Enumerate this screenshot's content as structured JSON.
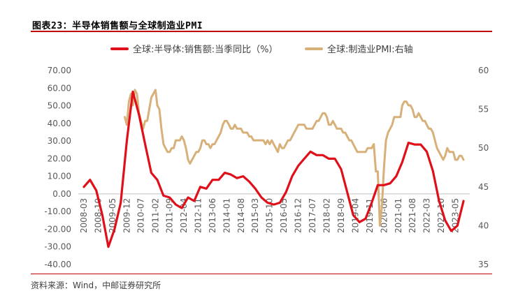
{
  "figure": {
    "title": "图表23：半导体销售额与全球制造业PMI",
    "source": "资料来源：Wind，中邮证券研究所"
  },
  "chart_data": {
    "type": "line",
    "title": "",
    "legend_position": "top",
    "grid": false,
    "x_tick_labels": [
      "2008-03",
      "2008-10",
      "2009-05",
      "2009-12",
      "2010-07",
      "2011-02",
      "2011-09",
      "2012-04",
      "2012-11",
      "2013-06",
      "2014-01",
      "2014-08",
      "2015-03",
      "2015-10",
      "2016-05",
      "2016-12",
      "2017-07",
      "2018-02",
      "2018-09",
      "2019-04",
      "2019-11",
      "2020-06",
      "2021-01",
      "2021-08",
      "2022-03",
      "2022-10",
      "2023-05"
    ],
    "y_left": {
      "ticks": [
        "70.00",
        "60.00",
        "50.00",
        "40.00",
        "30.00",
        "20.00",
        "10.00",
        "0.00",
        "-10.00",
        "-20.00",
        "-30.00",
        "-40.00"
      ],
      "range": [
        -40,
        70
      ]
    },
    "y_right": {
      "ticks": [
        "60",
        "55",
        "50",
        "45",
        "40",
        "35"
      ],
      "range": [
        35,
        60
      ]
    },
    "series": [
      {
        "name": "全球:半导体:销售额:当季同比（%）",
        "axis": "left",
        "color": "#e0101a",
        "points": [
          [
            "2008-03",
            4
          ],
          [
            "2008-06",
            8
          ],
          [
            "2008-09",
            2
          ],
          [
            "2008-12",
            -12
          ],
          [
            "2009-03",
            -30
          ],
          [
            "2009-06",
            -20
          ],
          [
            "2009-09",
            -5
          ],
          [
            "2009-12",
            30
          ],
          [
            "2010-03",
            58
          ],
          [
            "2010-06",
            45
          ],
          [
            "2010-09",
            28
          ],
          [
            "2010-12",
            12
          ],
          [
            "2011-03",
            8
          ],
          [
            "2011-06",
            -1
          ],
          [
            "2011-09",
            -2
          ],
          [
            "2011-12",
            -6
          ],
          [
            "2012-03",
            -8
          ],
          [
            "2012-06",
            -2
          ],
          [
            "2012-09",
            -4
          ],
          [
            "2012-12",
            4
          ],
          [
            "2013-03",
            3
          ],
          [
            "2013-06",
            8
          ],
          [
            "2013-09",
            8
          ],
          [
            "2013-12",
            12
          ],
          [
            "2014-03",
            11
          ],
          [
            "2014-06",
            9
          ],
          [
            "2014-09",
            10
          ],
          [
            "2014-12",
            7
          ],
          [
            "2015-03",
            3
          ],
          [
            "2015-06",
            -2
          ],
          [
            "2015-09",
            -5
          ],
          [
            "2015-12",
            -6
          ],
          [
            "2016-03",
            -5
          ],
          [
            "2016-06",
            1
          ],
          [
            "2016-09",
            10
          ],
          [
            "2016-12",
            16
          ],
          [
            "2017-03",
            20
          ],
          [
            "2017-06",
            24
          ],
          [
            "2017-09",
            22
          ],
          [
            "2017-12",
            22
          ],
          [
            "2018-03",
            20
          ],
          [
            "2018-06",
            20
          ],
          [
            "2018-09",
            14
          ],
          [
            "2018-12",
            1
          ],
          [
            "2019-03",
            -12
          ],
          [
            "2019-06",
            -16
          ],
          [
            "2019-09",
            -14
          ],
          [
            "2019-12",
            -5
          ],
          [
            "2020-03",
            5
          ],
          [
            "2020-06",
            5
          ],
          [
            "2020-09",
            6
          ],
          [
            "2020-12",
            10
          ],
          [
            "2021-03",
            18
          ],
          [
            "2021-06",
            29
          ],
          [
            "2021-09",
            28
          ],
          [
            "2021-12",
            28
          ],
          [
            "2022-03",
            24
          ],
          [
            "2022-06",
            13
          ],
          [
            "2022-09",
            -4
          ],
          [
            "2022-12",
            -15
          ],
          [
            "2023-03",
            -21
          ],
          [
            "2023-06",
            -18
          ],
          [
            "2023-09",
            -4
          ]
        ]
      },
      {
        "name": "全球:制造业PMI:右轴",
        "axis": "right",
        "color": "#d7b07a",
        "points": [
          [
            "2009-11",
            54
          ],
          [
            "2009-12",
            53
          ],
          [
            "2010-01",
            56
          ],
          [
            "2010-02",
            57
          ],
          [
            "2010-03",
            55.5
          ],
          [
            "2010-04",
            57.5
          ],
          [
            "2010-05",
            57
          ],
          [
            "2010-06",
            54.5
          ],
          [
            "2010-07",
            53.5
          ],
          [
            "2010-08",
            52.5
          ],
          [
            "2010-09",
            53.5
          ],
          [
            "2010-10",
            53.5
          ],
          [
            "2010-11",
            55
          ],
          [
            "2010-12",
            56.5
          ],
          [
            "2011-01",
            57
          ],
          [
            "2011-02",
            57.5
          ],
          [
            "2011-03",
            55.5
          ],
          [
            "2011-04",
            55
          ],
          [
            "2011-05",
            52.5
          ],
          [
            "2011-06",
            50.5
          ],
          [
            "2011-07",
            50
          ],
          [
            "2011-08",
            49.5
          ],
          [
            "2011-09",
            49.5
          ],
          [
            "2011-10",
            50
          ],
          [
            "2011-11",
            50
          ],
          [
            "2011-12",
            51
          ],
          [
            "2012-01",
            51
          ],
          [
            "2012-02",
            51
          ],
          [
            "2012-03",
            51.5
          ],
          [
            "2012-04",
            51
          ],
          [
            "2012-05",
            50
          ],
          [
            "2012-06",
            48.5
          ],
          [
            "2012-07",
            48
          ],
          [
            "2012-08",
            48.5
          ],
          [
            "2012-09",
            49
          ],
          [
            "2012-10",
            49.5
          ],
          [
            "2012-11",
            49.5
          ],
          [
            "2012-12",
            50
          ],
          [
            "2013-01",
            51
          ],
          [
            "2013-02",
            51
          ],
          [
            "2013-03",
            50.5
          ],
          [
            "2013-04",
            50.5
          ],
          [
            "2013-05",
            50
          ],
          [
            "2013-06",
            50.5
          ],
          [
            "2013-07",
            50.5
          ],
          [
            "2013-08",
            51
          ],
          [
            "2013-09",
            51.5
          ],
          [
            "2013-10",
            52
          ],
          [
            "2013-11",
            53
          ],
          [
            "2013-12",
            53.5
          ],
          [
            "2014-01",
            53.5
          ],
          [
            "2014-02",
            53
          ],
          [
            "2014-03",
            52.5
          ],
          [
            "2014-04",
            52.5
          ],
          [
            "2014-05",
            53
          ],
          [
            "2014-06",
            52.5
          ],
          [
            "2014-07",
            52.5
          ],
          [
            "2014-08",
            52.5
          ],
          [
            "2014-09",
            52
          ],
          [
            "2014-10",
            52
          ],
          [
            "2014-11",
            52
          ],
          [
            "2014-12",
            51.5
          ],
          [
            "2015-01",
            51.5
          ],
          [
            "2015-02",
            51
          ],
          [
            "2015-03",
            51
          ],
          [
            "2015-04",
            51
          ],
          [
            "2015-05",
            51
          ],
          [
            "2015-06",
            51
          ],
          [
            "2015-07",
            51
          ],
          [
            "2015-08",
            50.5
          ],
          [
            "2015-09",
            51
          ],
          [
            "2015-10",
            50.5
          ],
          [
            "2015-11",
            51
          ],
          [
            "2015-12",
            50.5
          ],
          [
            "2016-01",
            50
          ],
          [
            "2016-02",
            49.5
          ],
          [
            "2016-03",
            50.5
          ],
          [
            "2016-04",
            50
          ],
          [
            "2016-05",
            50
          ],
          [
            "2016-06",
            50.5
          ],
          [
            "2016-07",
            51
          ],
          [
            "2016-08",
            51
          ],
          [
            "2016-09",
            51.5
          ],
          [
            "2016-10",
            52
          ],
          [
            "2016-11",
            52.5
          ],
          [
            "2016-12",
            53
          ],
          [
            "2017-01",
            53
          ],
          [
            "2017-02",
            53
          ],
          [
            "2017-03",
            53
          ],
          [
            "2017-04",
            52.5
          ],
          [
            "2017-05",
            52.5
          ],
          [
            "2017-06",
            52.5
          ],
          [
            "2017-07",
            52.5
          ],
          [
            "2017-08",
            53
          ],
          [
            "2017-09",
            53.5
          ],
          [
            "2017-10",
            53.5
          ],
          [
            "2017-11",
            54
          ],
          [
            "2017-12",
            54.5
          ],
          [
            "2018-01",
            54.5
          ],
          [
            "2018-02",
            54
          ],
          [
            "2018-03",
            53
          ],
          [
            "2018-04",
            53
          ],
          [
            "2018-05",
            53.5
          ],
          [
            "2018-06",
            53
          ],
          [
            "2018-07",
            52.5
          ],
          [
            "2018-08",
            52.5
          ],
          [
            "2018-09",
            52.5
          ],
          [
            "2018-10",
            52
          ],
          [
            "2018-11",
            52
          ],
          [
            "2018-12",
            51.5
          ],
          [
            "2019-01",
            51
          ],
          [
            "2019-02",
            51
          ],
          [
            "2019-03",
            50.5
          ],
          [
            "2019-04",
            50
          ],
          [
            "2019-05",
            49.5
          ],
          [
            "2019-06",
            49.5
          ],
          [
            "2019-07",
            49.5
          ],
          [
            "2019-08",
            49.5
          ],
          [
            "2019-09",
            49.5
          ],
          [
            "2019-10",
            50
          ],
          [
            "2019-11",
            50
          ],
          [
            "2019-12",
            50
          ],
          [
            "2020-01",
            50.5
          ],
          [
            "2020-02",
            47
          ],
          [
            "2020-03",
            47
          ],
          [
            "2020-04",
            40
          ],
          [
            "2020-05",
            42.5
          ],
          [
            "2020-06",
            47.5
          ],
          [
            "2020-07",
            51
          ],
          [
            "2020-08",
            52
          ],
          [
            "2020-09",
            52.5
          ],
          [
            "2020-10",
            53
          ],
          [
            "2020-11",
            54
          ],
          [
            "2020-12",
            54
          ],
          [
            "2021-01",
            54
          ],
          [
            "2021-02",
            54
          ],
          [
            "2021-03",
            55.5
          ],
          [
            "2021-04",
            56
          ],
          [
            "2021-05",
            56
          ],
          [
            "2021-06",
            55.5
          ],
          [
            "2021-07",
            55.5
          ],
          [
            "2021-08",
            55
          ],
          [
            "2021-09",
            54
          ],
          [
            "2021-10",
            54
          ],
          [
            "2021-11",
            54.5
          ],
          [
            "2021-12",
            54
          ],
          [
            "2022-01",
            53.5
          ],
          [
            "2022-02",
            53.5
          ],
          [
            "2022-03",
            53
          ],
          [
            "2022-04",
            52.5
          ],
          [
            "2022-05",
            52.5
          ],
          [
            "2022-06",
            52
          ],
          [
            "2022-07",
            51
          ],
          [
            "2022-08",
            50
          ],
          [
            "2022-09",
            49.5
          ],
          [
            "2022-10",
            49
          ],
          [
            "2022-11",
            48.5
          ],
          [
            "2022-12",
            49
          ],
          [
            "2023-01",
            50
          ],
          [
            "2023-02",
            49.5
          ],
          [
            "2023-03",
            49.5
          ],
          [
            "2023-04",
            49.5
          ],
          [
            "2023-05",
            48.5
          ],
          [
            "2023-06",
            48.5
          ],
          [
            "2023-07",
            49
          ],
          [
            "2023-08",
            49
          ],
          [
            "2023-09",
            48.5
          ]
        ]
      }
    ]
  }
}
